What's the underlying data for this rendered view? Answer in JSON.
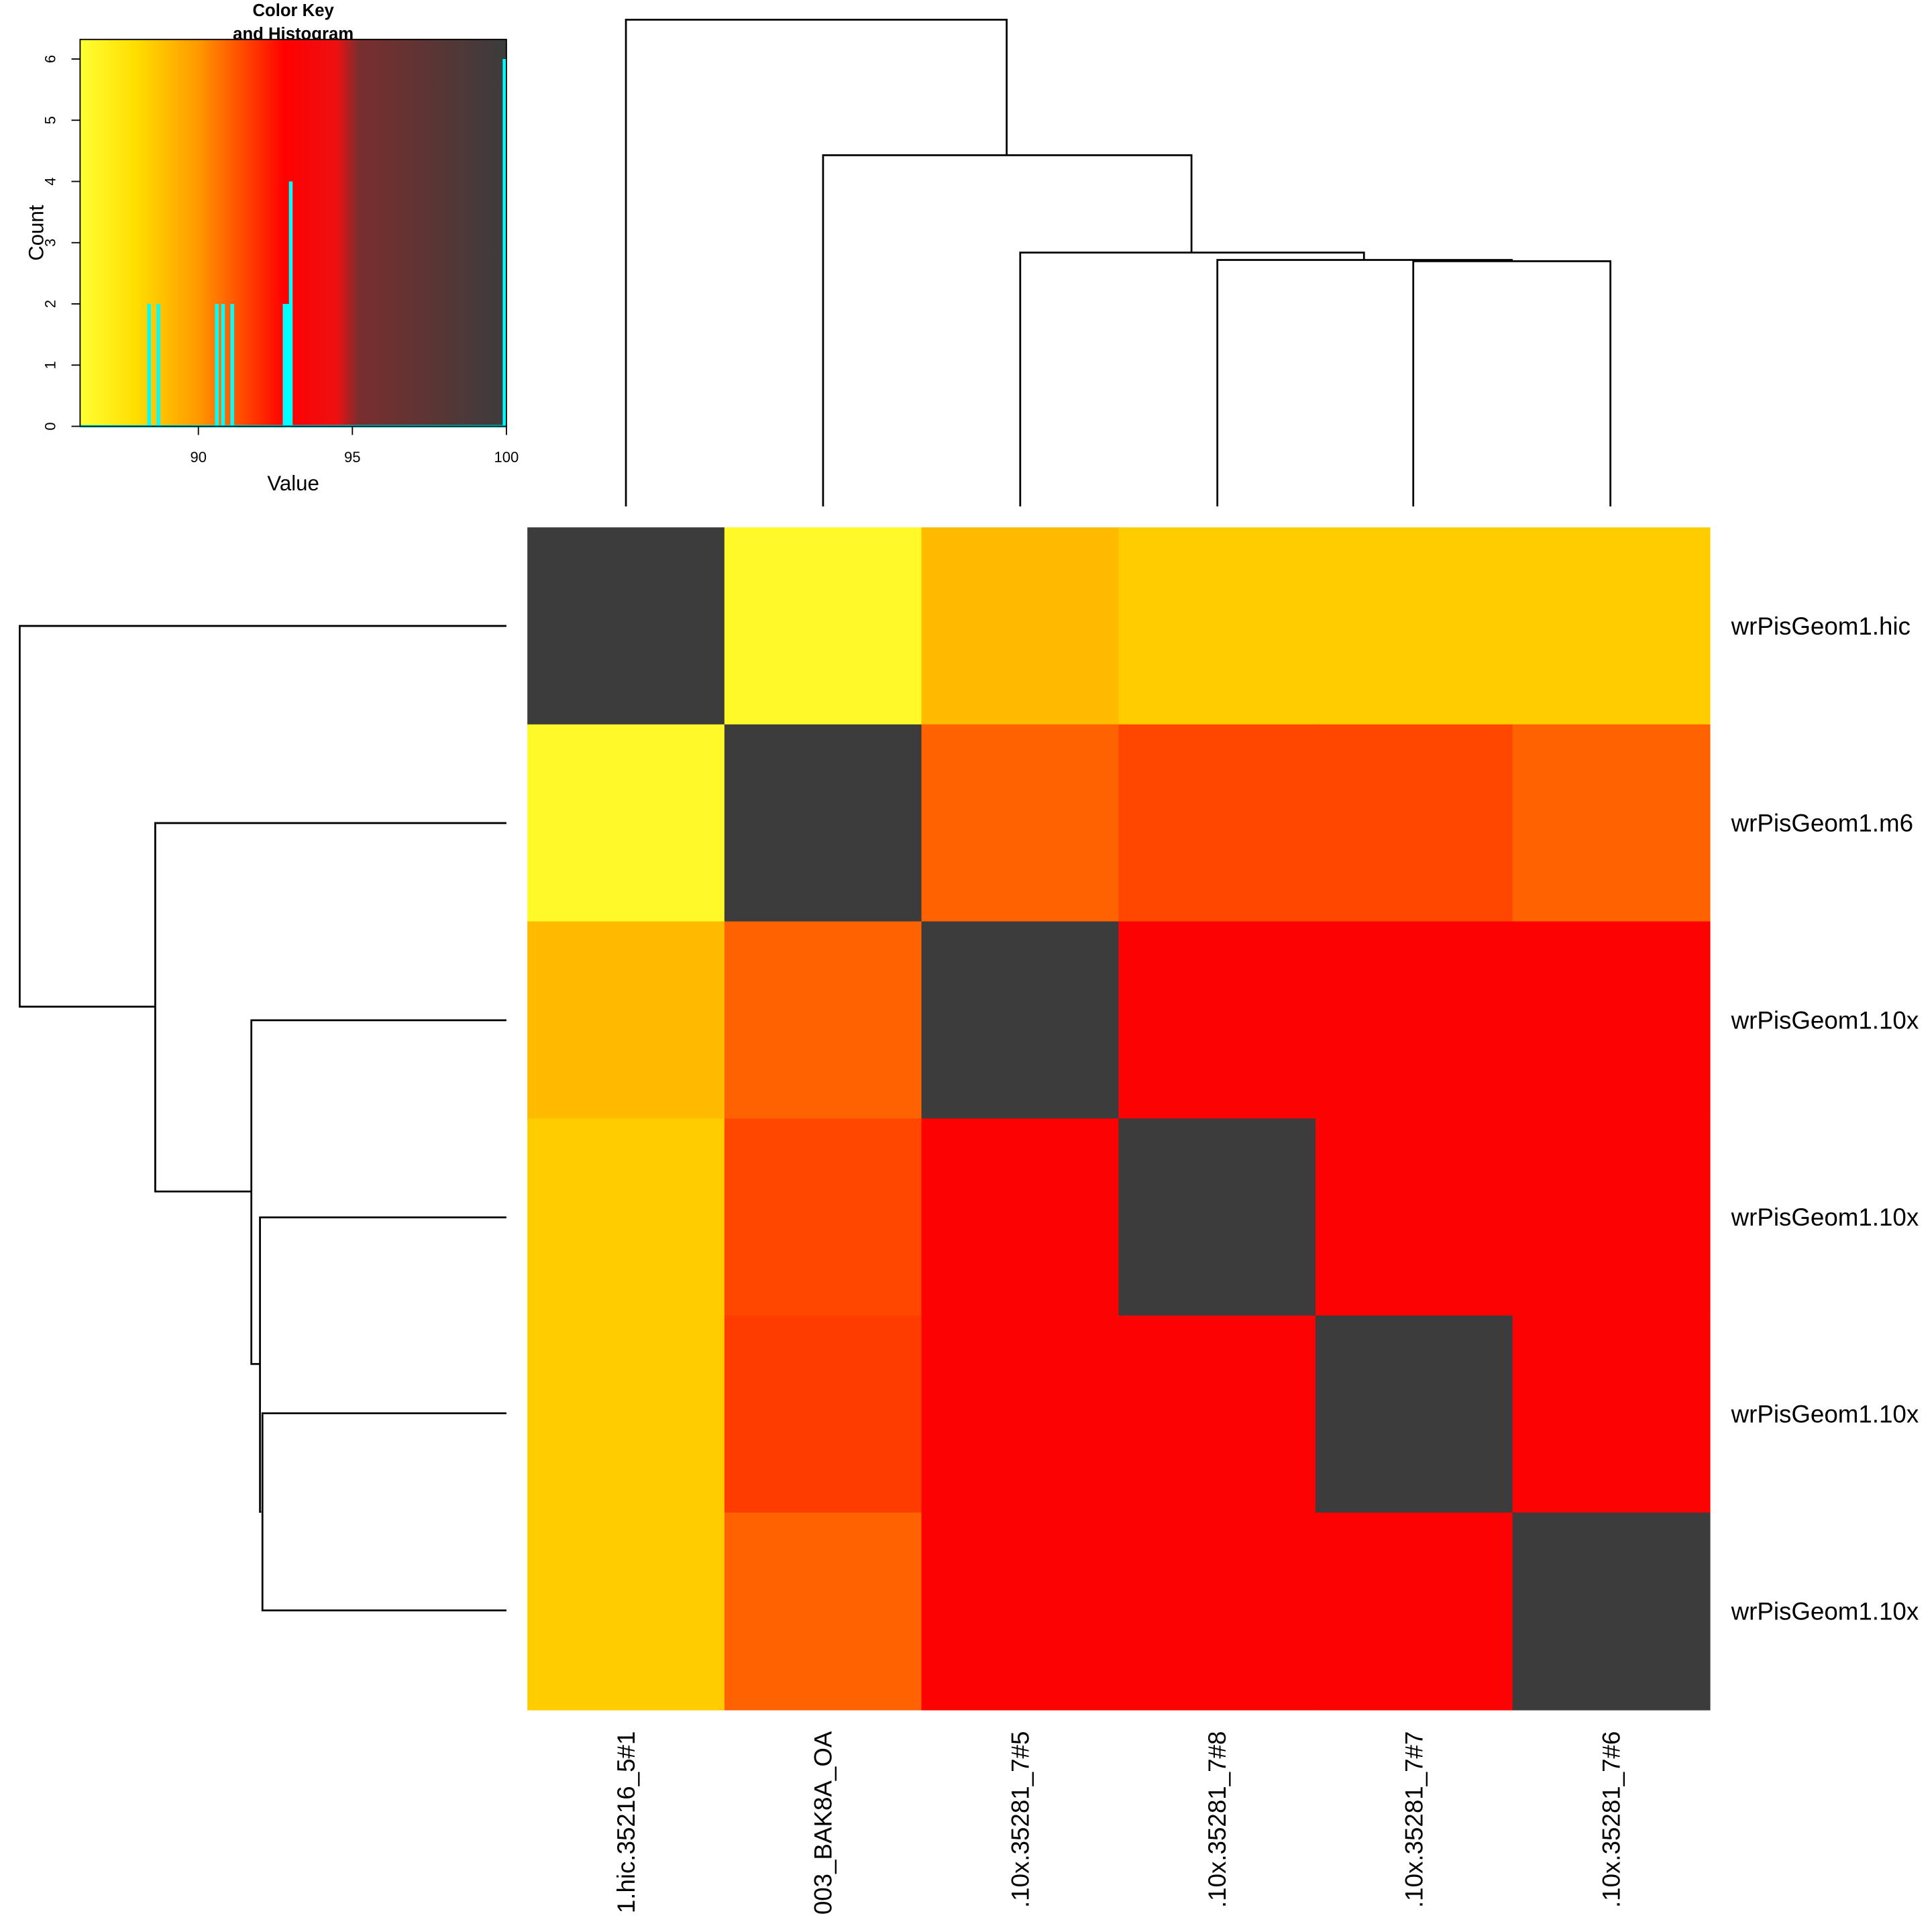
{
  "chart_data": [
    {
      "type": "heatmap",
      "rows": [
        "wrPisGeom1.hic",
        "wrPisGeom1.m6",
        "wrPisGeom1.10x",
        "wrPisGeom1.10x",
        "wrPisGeom1.10x",
        "wrPisGeom1.10x"
      ],
      "columns": [
        "1.hic.35216_5#1",
        "003_BAK8A_OA",
        ".10x.35281_7#5",
        ".10x.35281_7#8",
        ".10x.35281_7#7",
        ".10x.35281_7#6"
      ],
      "values": [
        [
          100,
          86.5,
          89,
          88.5,
          88.5,
          88.5
        ],
        [
          86.5,
          100,
          91,
          91.5,
          91.5,
          91
        ],
        [
          89,
          91,
          100,
          93,
          93,
          93
        ],
        [
          88.5,
          91.5,
          93,
          100,
          93,
          93
        ],
        [
          88.5,
          91.7,
          93,
          93,
          100,
          93
        ],
        [
          88.5,
          91,
          93,
          93,
          93,
          100
        ]
      ],
      "colorscale": [
        [
          86.16,
          "#ffff33"
        ],
        [
          88,
          "#ffdd00"
        ],
        [
          90,
          "#ff9900"
        ],
        [
          92.8,
          "#ff0000"
        ],
        [
          94.5,
          "#ee1010"
        ],
        [
          95.2,
          "#7a2e2e"
        ],
        [
          100,
          "#3c3c3c"
        ]
      ]
    },
    {
      "type": "bar",
      "title": [
        "Color Key",
        "and Histogram"
      ],
      "xlabel": "Value",
      "ylabel": "Count",
      "x": [
        88.4,
        88.7,
        90.6,
        90.8,
        91.1,
        92.8,
        92.9,
        93.0,
        100
      ],
      "values": [
        2,
        2,
        2,
        2,
        2,
        2,
        2,
        4,
        6
      ],
      "color": "#00ffff",
      "xlim": [
        86.16,
        100
      ],
      "ylim": [
        0,
        6.32
      ],
      "xticks": [
        90,
        95,
        100
      ],
      "yticks": [
        0,
        1,
        2,
        3,
        4,
        5,
        6
      ]
    }
  ]
}
